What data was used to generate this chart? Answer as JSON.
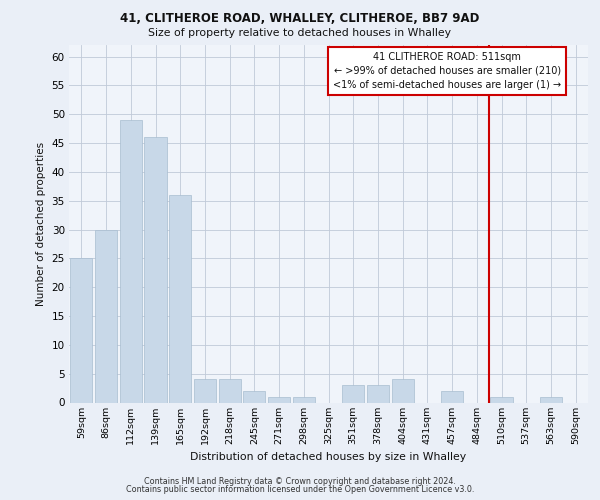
{
  "title1": "41, CLITHEROE ROAD, WHALLEY, CLITHEROE, BB7 9AD",
  "title2": "Size of property relative to detached houses in Whalley",
  "xlabel": "Distribution of detached houses by size in Whalley",
  "ylabel": "Number of detached properties",
  "categories": [
    "59sqm",
    "86sqm",
    "112sqm",
    "139sqm",
    "165sqm",
    "192sqm",
    "218sqm",
    "245sqm",
    "271sqm",
    "298sqm",
    "325sqm",
    "351sqm",
    "378sqm",
    "404sqm",
    "431sqm",
    "457sqm",
    "484sqm",
    "510sqm",
    "537sqm",
    "563sqm",
    "590sqm"
  ],
  "values": [
    25,
    30,
    49,
    46,
    36,
    4,
    4,
    2,
    1,
    1,
    0,
    3,
    3,
    4,
    0,
    2,
    0,
    1,
    0,
    1,
    0
  ],
  "bar_color": "#c8d8e8",
  "bar_edge_color": "#a8bdd0",
  "highlight_index": 17,
  "highlight_line_color": "#cc0000",
  "annotation_text": "41 CLITHEROE ROAD: 511sqm\n← >99% of detached houses are smaller (210)\n<1% of semi-detached houses are larger (1) →",
  "annotation_box_color": "#ffffff",
  "annotation_box_edge": "#cc0000",
  "ylim": [
    0,
    62
  ],
  "yticks": [
    0,
    5,
    10,
    15,
    20,
    25,
    30,
    35,
    40,
    45,
    50,
    55,
    60
  ],
  "footer1": "Contains HM Land Registry data © Crown copyright and database right 2024.",
  "footer2": "Contains public sector information licensed under the Open Government Licence v3.0.",
  "bg_color": "#eaeff7",
  "plot_bg_color": "#f0f4fa"
}
